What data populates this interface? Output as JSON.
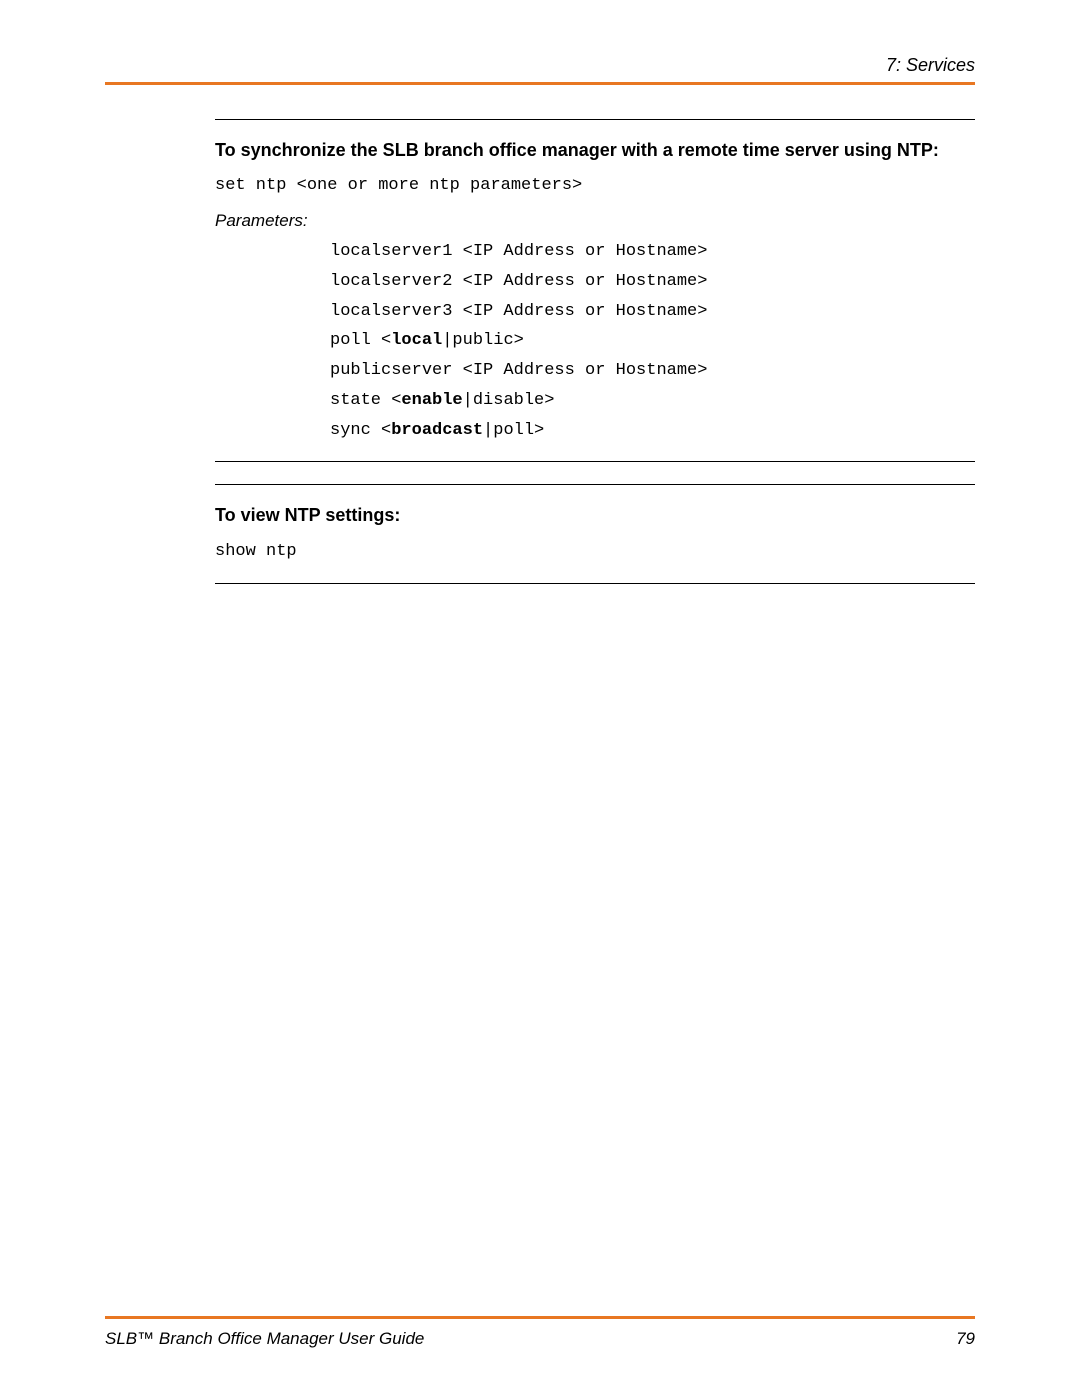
{
  "header": {
    "label": "7: Services"
  },
  "accent_color": "#e87722",
  "sections": [
    {
      "title": "To synchronize the SLB branch office manager with a remote time server using NTP:",
      "command": "set ntp <one or more ntp parameters>",
      "params_label": "Parameters:",
      "params": [
        [
          {
            "t": "localserver1 <IP Address or Hostname>",
            "b": false
          }
        ],
        [
          {
            "t": "localserver2 <IP Address or Hostname>",
            "b": false
          }
        ],
        [
          {
            "t": "localserver3 <IP Address or Hostname>",
            "b": false
          }
        ],
        [
          {
            "t": "poll <",
            "b": false
          },
          {
            "t": "local",
            "b": true
          },
          {
            "t": "|public>",
            "b": false
          }
        ],
        [
          {
            "t": "publicserver <IP Address or Hostname>",
            "b": false
          }
        ],
        [
          {
            "t": "state <",
            "b": false
          },
          {
            "t": "enable",
            "b": true
          },
          {
            "t": "|disable>",
            "b": false
          }
        ],
        [
          {
            "t": "sync <",
            "b": false
          },
          {
            "t": "broadcast",
            "b": true
          },
          {
            "t": "|poll>",
            "b": false
          }
        ]
      ]
    },
    {
      "title": "To view NTP settings:",
      "command": "show ntp",
      "params_label": null,
      "params": []
    }
  ],
  "footer": {
    "guide": "SLB™ Branch Office Manager User Guide",
    "page": "79"
  }
}
